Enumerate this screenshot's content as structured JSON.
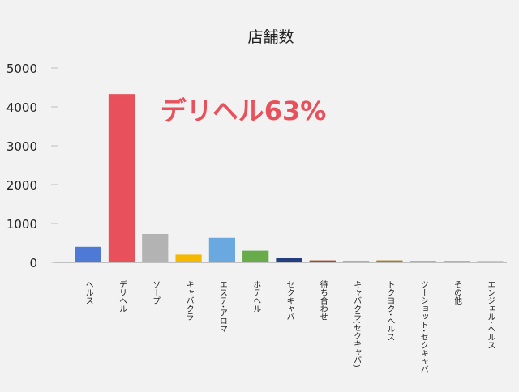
{
  "chart_data": {
    "type": "bar",
    "title": "店舗数",
    "annotation": "デリヘル63%",
    "categories": [
      "ヘルス",
      "デリヘル",
      "ソープ",
      "キャバクラ",
      "エステ･アロマ",
      "ホテヘル",
      "セクキャバ",
      "待ち合わせ",
      "キャバクラ(セクキャバ)",
      "トクヨク･ヘルス",
      "ツーショット･セクキャバ",
      "その他",
      "エンジェル･ヘルス"
    ],
    "values": [
      400,
      4330,
      730,
      200,
      630,
      300,
      110,
      50,
      30,
      50,
      30,
      30,
      30
    ],
    "colors": [
      "#4e79d4",
      "#e8505b",
      "#b3b3b3",
      "#f5b800",
      "#6aa8e0",
      "#67ab4a",
      "#243f80",
      "#a9481f",
      "#5a5a5a",
      "#a87d15",
      "#2e64a8",
      "#4a7a2e",
      "#6f97d0"
    ],
    "ylim": [
      0,
      5000
    ],
    "yticks": [
      0,
      1000,
      2000,
      3000,
      4000,
      5000
    ],
    "xlabel": "",
    "ylabel": "",
    "grid": false,
    "legend": "none"
  },
  "colors": {
    "background": "#f2f2f2",
    "annotation": "#e8505b",
    "axis": "#bfbfbf",
    "text": "#222222"
  }
}
